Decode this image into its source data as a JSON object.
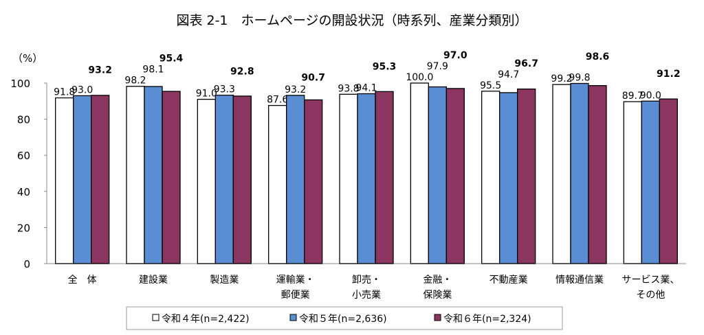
{
  "chart_data": {
    "type": "bar",
    "title": "図表 2-1　ホームページの開設状況（時系列、産業分類別）",
    "ylabel": "（%）",
    "ylim": [
      0,
      100
    ],
    "yticks": [
      0,
      20,
      40,
      60,
      80,
      100
    ],
    "grid": false,
    "legend_position": "bottom",
    "categories": [
      [
        "全　体"
      ],
      [
        "建設業"
      ],
      [
        "製造業"
      ],
      [
        "運輸業・",
        "郵便業"
      ],
      [
        "卸売・",
        "小売業"
      ],
      [
        "金融・",
        "保険業"
      ],
      [
        "不動産業"
      ],
      [
        "情報通信業"
      ],
      [
        "サービス業、",
        "その他"
      ]
    ],
    "series": [
      {
        "name": "令和４年(n=2,422)",
        "color": "#ffffff",
        "bold": false,
        "values": [
          91.8,
          98.2,
          91.0,
          87.6,
          93.8,
          100.0,
          95.5,
          99.2,
          89.7
        ]
      },
      {
        "name": "令和５年(n=2,636)",
        "color": "#5b8dd3",
        "bold": false,
        "values": [
          93.0,
          98.1,
          93.3,
          93.2,
          94.1,
          97.9,
          94.7,
          99.8,
          90.0
        ]
      },
      {
        "name": "令和６年(n=2,324)",
        "color": "#8b3660",
        "bold": true,
        "values": [
          93.2,
          95.4,
          92.8,
          90.7,
          95.3,
          97.0,
          96.7,
          98.6,
          91.2
        ]
      }
    ]
  }
}
